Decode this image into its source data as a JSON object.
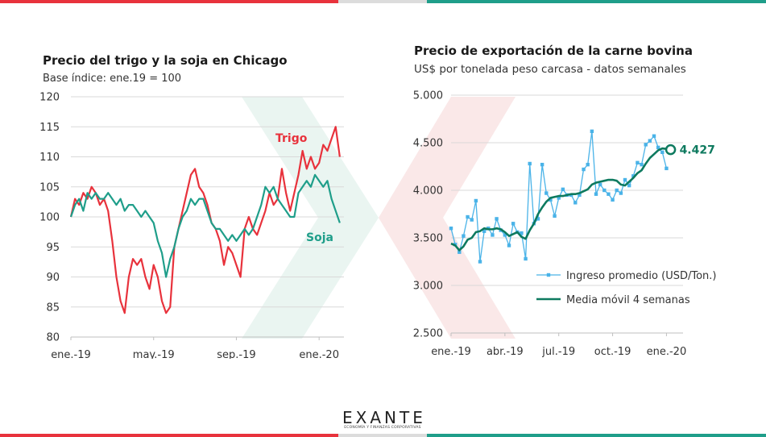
{
  "colors": {
    "red": "#e8323c",
    "teal": "#1f9e8a",
    "gray": "#dcdcdc",
    "light_blue": "#4ab3e8",
    "dark_green": "#0e7a5f",
    "watermark_red": "#f6d6d6",
    "watermark_green": "#d8ece6"
  },
  "brand": {
    "name": "EXANTE",
    "tagline": "ECONOMÍA Y FINANZAS CORPORATIVAS"
  },
  "chart_data": [
    {
      "type": "line",
      "title": "Precio del trigo y la soja en Chicago",
      "subtitle": "Base índice: ene.19 = 100",
      "x_tick_labels": [
        "ene.-19",
        "may.-19",
        "sep.-19",
        "ene.-20"
      ],
      "x_tick_positions": [
        0,
        4,
        8,
        12
      ],
      "xlim": [
        0,
        13.2
      ],
      "ylim": [
        80,
        120
      ],
      "y_ticks": [
        80,
        85,
        90,
        95,
        100,
        105,
        110,
        115,
        120
      ],
      "grid": true,
      "series": [
        {
          "name": "Trigo",
          "color": "#e8323c",
          "x": [
            0,
            0.2,
            0.4,
            0.6,
            0.8,
            1.0,
            1.2,
            1.4,
            1.6,
            1.8,
            2.0,
            2.2,
            2.4,
            2.6,
            2.8,
            3.0,
            3.2,
            3.4,
            3.6,
            3.8,
            4.0,
            4.2,
            4.4,
            4.6,
            4.8,
            5.0,
            5.2,
            5.4,
            5.6,
            5.8,
            6.0,
            6.2,
            6.4,
            6.6,
            6.8,
            7.0,
            7.2,
            7.4,
            7.6,
            7.8,
            8.0,
            8.2,
            8.4,
            8.6,
            8.8,
            9.0,
            9.2,
            9.4,
            9.6,
            9.8,
            10.0,
            10.2,
            10.4,
            10.6,
            10.8,
            11.0,
            11.2,
            11.4,
            11.6,
            11.8,
            12.0,
            12.2,
            12.4,
            12.6,
            12.8,
            13.0
          ],
          "values": [
            100,
            103,
            102,
            104,
            103,
            105,
            104,
            102,
            103,
            101,
            96,
            90,
            86,
            84,
            90,
            93,
            92,
            93,
            90,
            88,
            92,
            90,
            86,
            84,
            85,
            95,
            98,
            101,
            104,
            107,
            108,
            105,
            104,
            102,
            99,
            98,
            96,
            92,
            95,
            94,
            92,
            90,
            98,
            100,
            98,
            97,
            99,
            101,
            104,
            102,
            103,
            108,
            104,
            101,
            104,
            107,
            111,
            108,
            110,
            108,
            109,
            112,
            111,
            113,
            115,
            110
          ]
        },
        {
          "name": "Soja",
          "color": "#1f9e8a",
          "x": [
            0,
            0.2,
            0.4,
            0.6,
            0.8,
            1.0,
            1.2,
            1.4,
            1.6,
            1.8,
            2.0,
            2.2,
            2.4,
            2.6,
            2.8,
            3.0,
            3.2,
            3.4,
            3.6,
            3.8,
            4.0,
            4.2,
            4.4,
            4.6,
            4.8,
            5.0,
            5.2,
            5.4,
            5.6,
            5.8,
            6.0,
            6.2,
            6.4,
            6.6,
            6.8,
            7.0,
            7.2,
            7.4,
            7.6,
            7.8,
            8.0,
            8.2,
            8.4,
            8.6,
            8.8,
            9.0,
            9.2,
            9.4,
            9.6,
            9.8,
            10.0,
            10.2,
            10.4,
            10.6,
            10.8,
            11.0,
            11.2,
            11.4,
            11.6,
            11.8,
            12.0,
            12.2,
            12.4,
            12.6,
            12.8,
            13.0
          ],
          "values": [
            100,
            102,
            103,
            101,
            104,
            103,
            104,
            103,
            103,
            104,
            103,
            102,
            103,
            101,
            102,
            102,
            101,
            100,
            101,
            100,
            99,
            96,
            94,
            90,
            93,
            95,
            98,
            100,
            101,
            103,
            102,
            103,
            103,
            101,
            99,
            98,
            98,
            97,
            96,
            97,
            96,
            97,
            98,
            97,
            98,
            100,
            102,
            105,
            104,
            105,
            103,
            102,
            101,
            100,
            100,
            104,
            105,
            106,
            105,
            107,
            106,
            105,
            106,
            103,
            101,
            99
          ]
        }
      ],
      "annotations": [
        "Trigo",
        "Soja"
      ]
    },
    {
      "type": "line",
      "title": "Precio de exportación de la carne bovina",
      "subtitle": "US$ por tonelada peso carcasa - datos semanales",
      "x_tick_labels": [
        "ene.-19",
        "abr.-19",
        "jul.-19",
        "oct.-19",
        "ene.-20"
      ],
      "x_tick_positions": [
        0,
        13,
        26,
        39,
        52
      ],
      "xlim": [
        0,
        56
      ],
      "ylim": [
        2500,
        5000
      ],
      "y_ticks": [
        2500,
        3000,
        3500,
        4000,
        4500,
        5000
      ],
      "y_tick_labels": [
        "2.500",
        "3.000",
        "3.500",
        "4.000",
        "4.500",
        "5.000"
      ],
      "grid": true,
      "legend_position": "bottom-right",
      "series": [
        {
          "name": "Ingreso promedio (USD/Ton.)",
          "color": "#4ab3e8",
          "marker": "square",
          "x": [
            0,
            1,
            2,
            3,
            4,
            5,
            6,
            7,
            8,
            9,
            10,
            11,
            12,
            13,
            14,
            15,
            16,
            17,
            18,
            19,
            20,
            21,
            22,
            23,
            24,
            25,
            26,
            27,
            28,
            29,
            30,
            31,
            32,
            33,
            34,
            35,
            36,
            37,
            38,
            39,
            40,
            41,
            42,
            43,
            44,
            45,
            46,
            47,
            48,
            49,
            50,
            51,
            52
          ],
          "values": [
            3600,
            3430,
            3350,
            3520,
            3720,
            3690,
            3890,
            3250,
            3570,
            3600,
            3530,
            3700,
            3580,
            3530,
            3420,
            3650,
            3560,
            3550,
            3280,
            4280,
            3650,
            3700,
            4270,
            3970,
            3900,
            3730,
            3920,
            4010,
            3950,
            3950,
            3870,
            3950,
            4220,
            4270,
            4620,
            3960,
            4060,
            4000,
            3960,
            3900,
            4000,
            3970,
            4110,
            4050,
            4150,
            4290,
            4270,
            4480,
            4520,
            4570,
            4450,
            4400,
            4230
          ]
        },
        {
          "name": "Media móvil 4 semanas",
          "color": "#0e7a5f",
          "x": [
            0,
            1,
            2,
            3,
            4,
            5,
            6,
            7,
            8,
            9,
            10,
            11,
            12,
            13,
            14,
            15,
            16,
            17,
            18,
            19,
            20,
            21,
            22,
            23,
            24,
            25,
            26,
            27,
            28,
            29,
            30,
            31,
            32,
            33,
            34,
            35,
            36,
            37,
            38,
            39,
            40,
            41,
            42,
            43,
            44,
            45,
            46,
            47,
            48,
            49,
            50,
            51,
            52,
            53
          ],
          "values": [
            3440,
            3420,
            3370,
            3410,
            3480,
            3500,
            3560,
            3570,
            3600,
            3590,
            3590,
            3600,
            3590,
            3560,
            3520,
            3540,
            3560,
            3510,
            3490,
            3580,
            3650,
            3750,
            3820,
            3880,
            3920,
            3930,
            3940,
            3940,
            3950,
            3960,
            3960,
            3970,
            3990,
            4010,
            4060,
            4080,
            4090,
            4100,
            4110,
            4110,
            4100,
            4060,
            4050,
            4090,
            4130,
            4180,
            4210,
            4280,
            4340,
            4380,
            4420,
            4440,
            4435,
            4427
          ]
        }
      ],
      "last_value_label": "4.427"
    }
  ]
}
